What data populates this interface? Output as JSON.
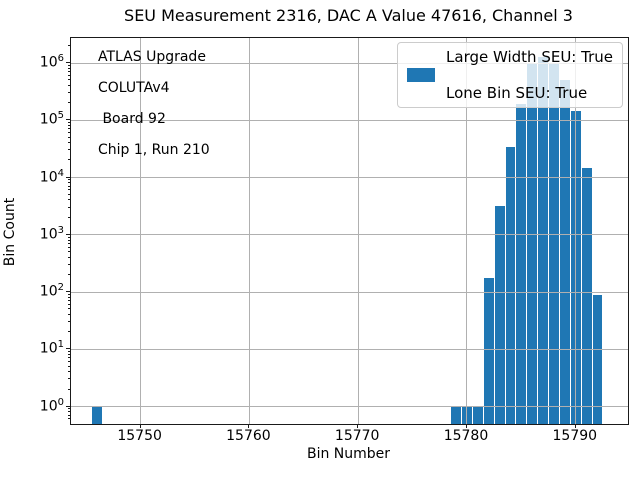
{
  "title": "SEU Measurement 2316, DAC A Value 47616, Channel 3",
  "annotation": {
    "lines": [
      "ATLAS Upgrade",
      "COLUTAv4",
      " Board 92",
      "Chip 1, Run 210"
    ]
  },
  "legend": {
    "line1": "Large Width SEU: True",
    "line2": "Lone Bin SEU: True"
  },
  "colors": {
    "bar": "#1f77b4",
    "grid": "#b0b0b0",
    "spine": "#1a1a1a",
    "legend_border": "#cccccc"
  },
  "chart_data": {
    "type": "bar",
    "title": "SEU Measurement 2316, DAC A Value 47616, Channel 3",
    "xlabel": "Bin Number",
    "ylabel": "Bin Count",
    "yscale": "log",
    "grid": true,
    "legend_position": "upper right",
    "xlim": [
      15743.6,
      15794.8
    ],
    "ylim": [
      0.5,
      2750000
    ],
    "x_ticks": [
      15750,
      15760,
      15770,
      15780,
      15790
    ],
    "y_tick_exponents": [
      0,
      1,
      2,
      3,
      4,
      5,
      6
    ],
    "bar_width": 0.9,
    "bins": [
      15746,
      15779,
      15780,
      15781,
      15782,
      15783,
      15784,
      15785,
      15786,
      15787,
      15788,
      15789,
      15790,
      15791,
      15792
    ],
    "counts": [
      1,
      1,
      1,
      1,
      177,
      3200,
      34000,
      190000,
      950000,
      1300000,
      1000000,
      500000,
      145000,
      15000,
      90
    ]
  }
}
